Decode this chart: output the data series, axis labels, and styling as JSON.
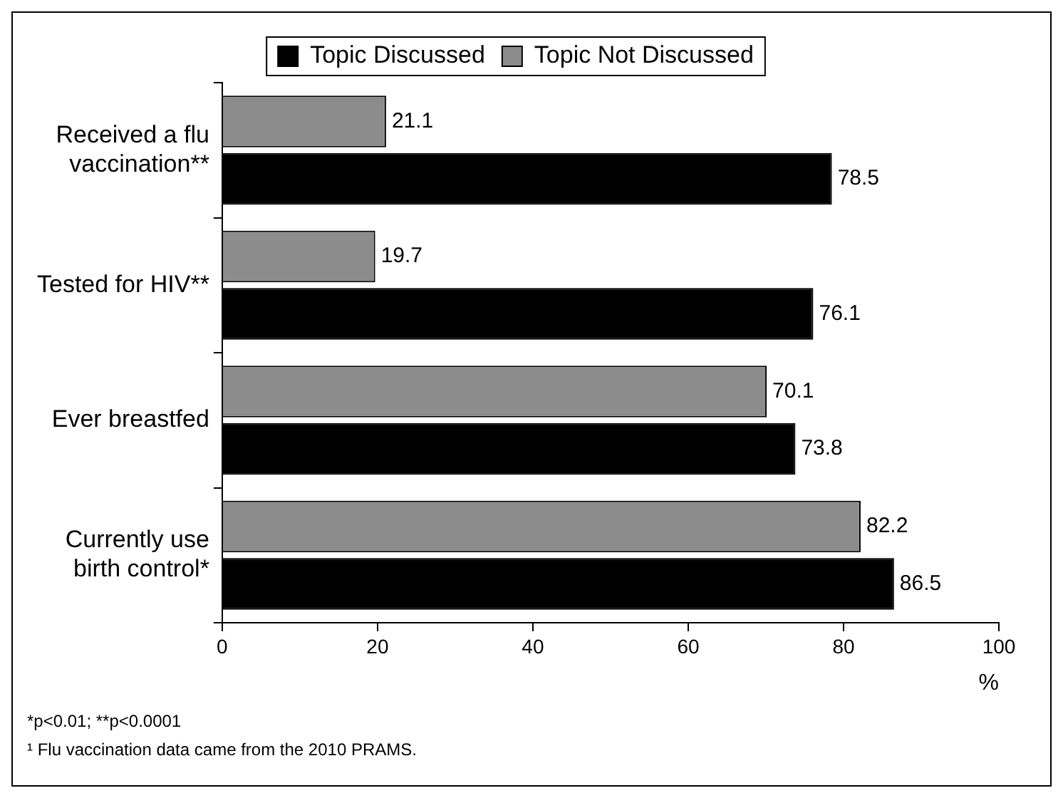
{
  "chart_data": {
    "type": "bar",
    "orientation": "horizontal",
    "categories": [
      "Received a flu vaccination**",
      "Tested for HIV**",
      "Ever breastfed",
      "Currently use birth control*"
    ],
    "series": [
      {
        "name": "Topic Not Discussed",
        "color": "#8c8c8c",
        "values": [
          21.1,
          19.7,
          70.1,
          82.2
        ]
      },
      {
        "name": "Topic Discussed",
        "color": "#000000",
        "values": [
          78.5,
          76.1,
          73.8,
          86.5
        ]
      }
    ],
    "xlim": [
      0,
      100
    ],
    "xticks": [
      0,
      20,
      40,
      60,
      80,
      100
    ],
    "xlabel": "%",
    "data_labels": true,
    "legend": "top",
    "grid": false,
    "annotations": [
      "*p<0.01;  **p<0.0001",
      "¹ Flu vaccination data came from the 2010 PRAMS."
    ]
  }
}
